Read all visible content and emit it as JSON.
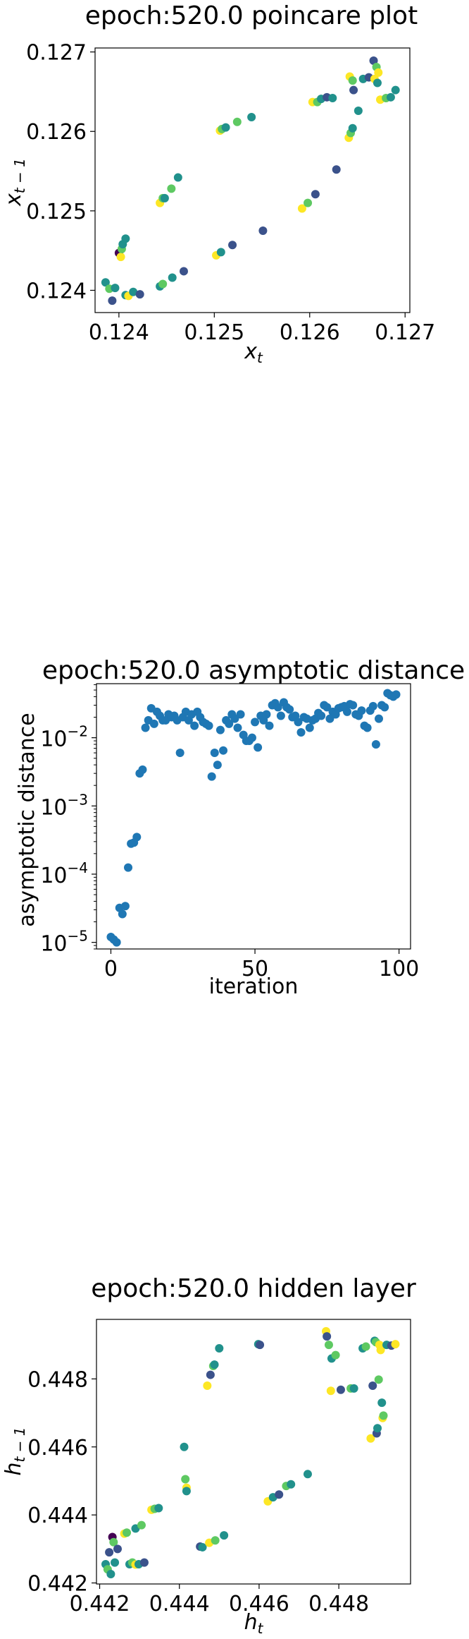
{
  "chart_data": [
    {
      "type": "scatter",
      "title": "epoch:520.0 poincare plot",
      "xlabel": "x_t",
      "ylabel": "x_{t-1}",
      "xlim": [
        0.12375,
        0.12705
      ],
      "ylim": [
        0.12372,
        0.12705
      ],
      "xticks": [
        0.124,
        0.125,
        0.126,
        0.127
      ],
      "xtick_labels": [
        "0.124",
        "0.125",
        "0.126",
        "0.127"
      ],
      "yticks": [
        0.124,
        0.125,
        0.126,
        0.127
      ],
      "ytick_labels": [
        "0.124",
        "0.125",
        "0.126",
        "0.127"
      ],
      "colormap": [
        "#440154",
        "#3b528b",
        "#21918c",
        "#5ec962",
        "#fde725"
      ],
      "points": [
        {
          "x": 0.12386,
          "y": 0.1241,
          "c": 2
        },
        {
          "x": 0.1239,
          "y": 0.12402,
          "c": 3
        },
        {
          "x": 0.12393,
          "y": 0.12387,
          "c": 1
        },
        {
          "x": 0.12396,
          "y": 0.12403,
          "c": 2
        },
        {
          "x": 0.124,
          "y": 0.12447,
          "c": 0
        },
        {
          "x": 0.12402,
          "y": 0.12442,
          "c": 4
        },
        {
          "x": 0.12403,
          "y": 0.12452,
          "c": 3
        },
        {
          "x": 0.12404,
          "y": 0.12458,
          "c": 2
        },
        {
          "x": 0.12407,
          "y": 0.12465,
          "c": 2
        },
        {
          "x": 0.12407,
          "y": 0.12394,
          "c": 2
        },
        {
          "x": 0.1241,
          "y": 0.12393,
          "c": 4
        },
        {
          "x": 0.12415,
          "y": 0.12398,
          "c": 2
        },
        {
          "x": 0.12422,
          "y": 0.12395,
          "c": 1
        },
        {
          "x": 0.12443,
          "y": 0.12405,
          "c": 2
        },
        {
          "x": 0.12446,
          "y": 0.12408,
          "c": 3
        },
        {
          "x": 0.12456,
          "y": 0.12416,
          "c": 2
        },
        {
          "x": 0.12468,
          "y": 0.12424,
          "c": 1
        },
        {
          "x": 0.12443,
          "y": 0.1251,
          "c": 4
        },
        {
          "x": 0.12446,
          "y": 0.12516,
          "c": 3
        },
        {
          "x": 0.12448,
          "y": 0.12516,
          "c": 2
        },
        {
          "x": 0.12455,
          "y": 0.12528,
          "c": 3
        },
        {
          "x": 0.12462,
          "y": 0.12542,
          "c": 2
        },
        {
          "x": 0.12502,
          "y": 0.12444,
          "c": 4
        },
        {
          "x": 0.12507,
          "y": 0.12448,
          "c": 2
        },
        {
          "x": 0.12519,
          "y": 0.12457,
          "c": 1
        },
        {
          "x": 0.12551,
          "y": 0.12475,
          "c": 1
        },
        {
          "x": 0.12506,
          "y": 0.12601,
          "c": 4
        },
        {
          "x": 0.12508,
          "y": 0.12603,
          "c": 3
        },
        {
          "x": 0.12512,
          "y": 0.12605,
          "c": 2
        },
        {
          "x": 0.12524,
          "y": 0.12612,
          "c": 3
        },
        {
          "x": 0.12539,
          "y": 0.12618,
          "c": 2
        },
        {
          "x": 0.12592,
          "y": 0.12503,
          "c": 4
        },
        {
          "x": 0.12598,
          "y": 0.1251,
          "c": 3
        },
        {
          "x": 0.12606,
          "y": 0.12521,
          "c": 1
        },
        {
          "x": 0.12603,
          "y": 0.12637,
          "c": 4
        },
        {
          "x": 0.12608,
          "y": 0.12637,
          "c": 3
        },
        {
          "x": 0.12612,
          "y": 0.12641,
          "c": 2
        },
        {
          "x": 0.12618,
          "y": 0.12643,
          "c": 1
        },
        {
          "x": 0.12624,
          "y": 0.12642,
          "c": 2
        },
        {
          "x": 0.12628,
          "y": 0.12552,
          "c": 1
        },
        {
          "x": 0.12641,
          "y": 0.12592,
          "c": 4
        },
        {
          "x": 0.12643,
          "y": 0.12598,
          "c": 3
        },
        {
          "x": 0.12645,
          "y": 0.12604,
          "c": 2
        },
        {
          "x": 0.12642,
          "y": 0.12669,
          "c": 4
        },
        {
          "x": 0.12645,
          "y": 0.12664,
          "c": 3
        },
        {
          "x": 0.12646,
          "y": 0.12652,
          "c": 1
        },
        {
          "x": 0.12651,
          "y": 0.12626,
          "c": 2
        },
        {
          "x": 0.12656,
          "y": 0.12666,
          "c": 2
        },
        {
          "x": 0.12662,
          "y": 0.12668,
          "c": 1
        },
        {
          "x": 0.12667,
          "y": 0.12689,
          "c": 1
        },
        {
          "x": 0.1267,
          "y": 0.12681,
          "c": 3
        },
        {
          "x": 0.12672,
          "y": 0.12674,
          "c": 4
        },
        {
          "x": 0.12668,
          "y": 0.12666,
          "c": 4
        },
        {
          "x": 0.12671,
          "y": 0.12661,
          "c": 2
        },
        {
          "x": 0.12674,
          "y": 0.1264,
          "c": 4
        },
        {
          "x": 0.1268,
          "y": 0.12642,
          "c": 3
        },
        {
          "x": 0.12685,
          "y": 0.12643,
          "c": 2
        },
        {
          "x": 0.1269,
          "y": 0.12652,
          "c": 2
        }
      ]
    },
    {
      "type": "scatter",
      "title": "epoch:520.0 asymptotic distance",
      "xlabel": "iteration",
      "ylabel": "asymptotic distance",
      "yscale": "log",
      "xlim": [
        -5,
        104
      ],
      "ylim": [
        8e-06,
        0.062
      ],
      "xticks": [
        0,
        50,
        100
      ],
      "xtick_labels": [
        "0",
        "50",
        "100"
      ],
      "yticks": [
        1e-05,
        0.0001,
        0.001,
        0.01
      ],
      "ytick_labels": [
        "10",
        "10",
        "10",
        "10"
      ],
      "ytick_exponents": [
        "−5",
        "−4",
        "−3",
        "−2"
      ],
      "color": "#1f77b4",
      "x": [
        0,
        1,
        2,
        3,
        4,
        5,
        6,
        7,
        8,
        9,
        10,
        11,
        12,
        13,
        14,
        15,
        16,
        17,
        18,
        19,
        20,
        21,
        22,
        23,
        24,
        25,
        26,
        27,
        28,
        29,
        30,
        31,
        32,
        33,
        34,
        35,
        36,
        37,
        38,
        39,
        40,
        41,
        42,
        43,
        44,
        45,
        46,
        47,
        48,
        49,
        50,
        51,
        52,
        53,
        54,
        55,
        56,
        57,
        58,
        59,
        60,
        61,
        62,
        63,
        64,
        65,
        66,
        67,
        68,
        69,
        70,
        71,
        72,
        73,
        74,
        75,
        76,
        77,
        78,
        79,
        80,
        81,
        82,
        83,
        84,
        85,
        86,
        87,
        88,
        89,
        90,
        91,
        92,
        93,
        94,
        95,
        96,
        97,
        98,
        99
      ],
      "y": [
        1.2e-05,
        1.1e-05,
        1e-05,
        3.2e-05,
        2.6e-05,
        3.4e-05,
        0.000125,
        0.00028,
        0.00029,
        0.00035,
        0.003,
        0.0034,
        0.014,
        0.018,
        0.027,
        0.016,
        0.024,
        0.021,
        0.018,
        0.018,
        0.022,
        0.02,
        0.021,
        0.018,
        0.006,
        0.02,
        0.024,
        0.018,
        0.022,
        0.015,
        0.024,
        0.02,
        0.017,
        0.016,
        0.015,
        0.0027,
        0.006,
        0.004,
        0.013,
        0.0065,
        0.018,
        0.016,
        0.022,
        0.019,
        0.014,
        0.022,
        0.011,
        0.009,
        0.009,
        0.01,
        0.017,
        0.0072,
        0.021,
        0.018,
        0.022,
        0.015,
        0.03,
        0.032,
        0.028,
        0.021,
        0.033,
        0.028,
        0.026,
        0.02,
        0.021,
        0.017,
        0.012,
        0.02,
        0.019,
        0.014,
        0.018,
        0.019,
        0.023,
        0.021,
        0.03,
        0.028,
        0.019,
        0.024,
        0.022,
        0.027,
        0.028,
        0.029,
        0.024,
        0.031,
        0.03,
        0.022,
        0.021,
        0.025,
        0.015,
        0.014,
        0.025,
        0.029,
        0.008,
        0.019,
        0.03,
        0.028,
        0.045,
        0.042,
        0.04,
        0.043
      ]
    },
    {
      "type": "scatter",
      "title": "epoch:520.0 hidden layer",
      "xlabel": "h_t",
      "ylabel": "h_{t-1}",
      "xlim": [
        0.44192,
        0.4498
      ],
      "ylim": [
        0.44197,
        0.44975
      ],
      "xticks": [
        0.442,
        0.444,
        0.446,
        0.448
      ],
      "xtick_labels": [
        "0.442",
        "0.444",
        "0.446",
        "0.448"
      ],
      "yticks": [
        0.442,
        0.444,
        0.446,
        0.448
      ],
      "ytick_labels": [
        "0.442",
        "0.444",
        "0.446",
        "0.448"
      ],
      "colormap": [
        "#440154",
        "#3b528b",
        "#21918c",
        "#5ec962",
        "#fde725"
      ],
      "points": [
        {
          "x": 0.44215,
          "y": 0.44255,
          "c": 2
        },
        {
          "x": 0.4422,
          "y": 0.4424,
          "c": 3
        },
        {
          "x": 0.44224,
          "y": 0.4429,
          "c": 1
        },
        {
          "x": 0.44228,
          "y": 0.44226,
          "c": 2
        },
        {
          "x": 0.44232,
          "y": 0.44335,
          "c": 0
        },
        {
          "x": 0.44235,
          "y": 0.4432,
          "c": 3
        },
        {
          "x": 0.44238,
          "y": 0.4426,
          "c": 2
        },
        {
          "x": 0.44245,
          "y": 0.443,
          "c": 1
        },
        {
          "x": 0.44262,
          "y": 0.44345,
          "c": 4
        },
        {
          "x": 0.44268,
          "y": 0.44348,
          "c": 3
        },
        {
          "x": 0.44275,
          "y": 0.44255,
          "c": 2
        },
        {
          "x": 0.44282,
          "y": 0.4426,
          "c": 3
        },
        {
          "x": 0.4429,
          "y": 0.44254,
          "c": 4
        },
        {
          "x": 0.44298,
          "y": 0.44255,
          "c": 2
        },
        {
          "x": 0.44312,
          "y": 0.4426,
          "c": 1
        },
        {
          "x": 0.4429,
          "y": 0.4436,
          "c": 2
        },
        {
          "x": 0.44305,
          "y": 0.4437,
          "c": 3
        },
        {
          "x": 0.4433,
          "y": 0.44415,
          "c": 4
        },
        {
          "x": 0.44338,
          "y": 0.44418,
          "c": 3
        },
        {
          "x": 0.44348,
          "y": 0.4442,
          "c": 2
        },
        {
          "x": 0.44412,
          "y": 0.446,
          "c": 2
        },
        {
          "x": 0.44415,
          "y": 0.44505,
          "c": 3
        },
        {
          "x": 0.44418,
          "y": 0.4448,
          "c": 4
        },
        {
          "x": 0.44418,
          "y": 0.4447,
          "c": 2
        },
        {
          "x": 0.44452,
          "y": 0.44307,
          "c": 1
        },
        {
          "x": 0.44458,
          "y": 0.44305,
          "c": 2
        },
        {
          "x": 0.44475,
          "y": 0.44318,
          "c": 4
        },
        {
          "x": 0.4449,
          "y": 0.44325,
          "c": 3
        },
        {
          "x": 0.44512,
          "y": 0.4434,
          "c": 2
        },
        {
          "x": 0.4447,
          "y": 0.4478,
          "c": 4
        },
        {
          "x": 0.44478,
          "y": 0.44812,
          "c": 1
        },
        {
          "x": 0.44485,
          "y": 0.44838,
          "c": 3
        },
        {
          "x": 0.44488,
          "y": 0.44842,
          "c": 2
        },
        {
          "x": 0.445,
          "y": 0.4489,
          "c": 2
        },
        {
          "x": 0.44598,
          "y": 0.44902,
          "c": 2
        },
        {
          "x": 0.44602,
          "y": 0.449,
          "c": 1
        },
        {
          "x": 0.44622,
          "y": 0.4444,
          "c": 4
        },
        {
          "x": 0.44635,
          "y": 0.44452,
          "c": 2
        },
        {
          "x": 0.4465,
          "y": 0.4446,
          "c": 1
        },
        {
          "x": 0.44668,
          "y": 0.44485,
          "c": 3
        },
        {
          "x": 0.4468,
          "y": 0.4449,
          "c": 2
        },
        {
          "x": 0.44722,
          "y": 0.4452,
          "c": 2
        },
        {
          "x": 0.44768,
          "y": 0.4494,
          "c": 4
        },
        {
          "x": 0.4477,
          "y": 0.44925,
          "c": 1
        },
        {
          "x": 0.44775,
          "y": 0.449,
          "c": 3
        },
        {
          "x": 0.44782,
          "y": 0.4486,
          "c": 2
        },
        {
          "x": 0.4478,
          "y": 0.44765,
          "c": 4
        },
        {
          "x": 0.44792,
          "y": 0.4487,
          "c": 3
        },
        {
          "x": 0.44805,
          "y": 0.44768,
          "c": 1
        },
        {
          "x": 0.4483,
          "y": 0.44772,
          "c": 3
        },
        {
          "x": 0.44838,
          "y": 0.44772,
          "c": 2
        },
        {
          "x": 0.4486,
          "y": 0.4489,
          "c": 2
        },
        {
          "x": 0.44868,
          "y": 0.44895,
          "c": 3
        },
        {
          "x": 0.4488,
          "y": 0.44625,
          "c": 4
        },
        {
          "x": 0.44885,
          "y": 0.4478,
          "c": 1
        },
        {
          "x": 0.4489,
          "y": 0.44912,
          "c": 2
        },
        {
          "x": 0.44893,
          "y": 0.44908,
          "c": 3
        },
        {
          "x": 0.44895,
          "y": 0.4464,
          "c": 1
        },
        {
          "x": 0.44897,
          "y": 0.44655,
          "c": 2
        },
        {
          "x": 0.449,
          "y": 0.44798,
          "c": 3
        },
        {
          "x": 0.44902,
          "y": 0.449,
          "c": 4
        },
        {
          "x": 0.44905,
          "y": 0.44885,
          "c": 4
        },
        {
          "x": 0.44908,
          "y": 0.4473,
          "c": 2
        },
        {
          "x": 0.4491,
          "y": 0.44685,
          "c": 4
        },
        {
          "x": 0.44912,
          "y": 0.44692,
          "c": 3
        },
        {
          "x": 0.4492,
          "y": 0.449,
          "c": 2
        },
        {
          "x": 0.44932,
          "y": 0.44898,
          "c": 1
        },
        {
          "x": 0.44942,
          "y": 0.44902,
          "c": 4
        }
      ]
    }
  ]
}
